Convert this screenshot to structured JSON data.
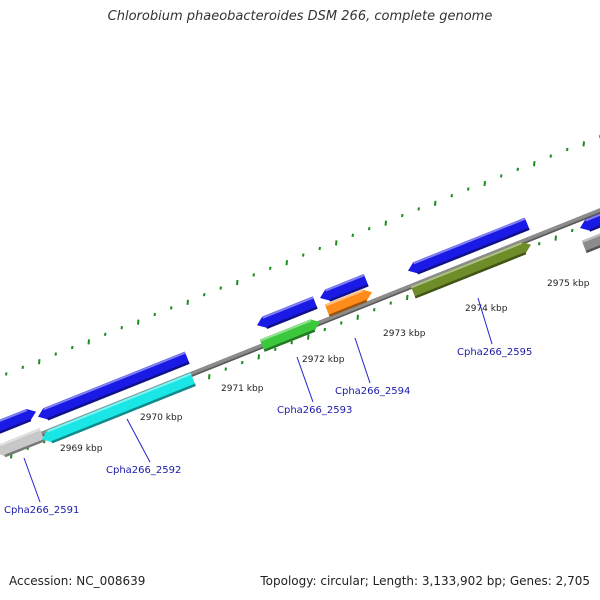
{
  "title": "Chlorobium phaeobacteroides DSM 266, complete genome",
  "accession_text": "Accession: NC_008639",
  "summary_text": "Topology: circular; Length: 3,133,902 bp; Genes: 2,705",
  "colors": {
    "backbone": "#8c8c8c",
    "tick": "#1a8c1a",
    "label": "#1a1aaa",
    "leader": "#2222cc",
    "generic_gene": "#1a1ae6"
  },
  "kbp_labels": [
    "2969 kbp",
    "2970 kbp",
    "2971 kbp",
    "2972 kbp",
    "2973 kbp",
    "2974 kbp",
    "2975 kbp"
  ],
  "genes": [
    {
      "label": "Cpha266_2591",
      "color": "#c8c8c8"
    },
    {
      "label": "Cpha266_2592",
      "color": "#1ae6e6"
    },
    {
      "label": "Cpha266_2593",
      "color": "#3cc83c"
    },
    {
      "label": "Cpha266_2594",
      "color": "#ff8c1a"
    },
    {
      "label": "Cpha266_2595",
      "color": "#6e8c28"
    },
    {
      "label": "",
      "color": "#8c8c8c"
    }
  ]
}
